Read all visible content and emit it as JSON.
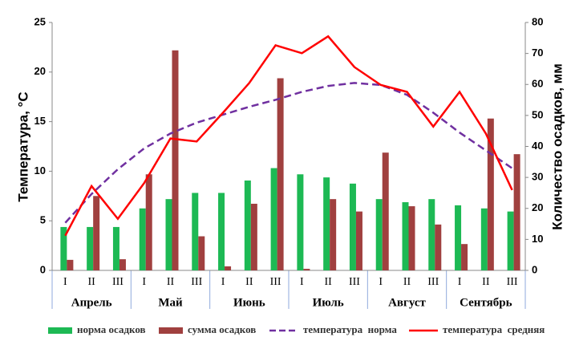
{
  "chart_data": {
    "type": "combo",
    "y_label": "Температура, °С",
    "y2_label": "Количество осадков, мм",
    "groups": [
      {
        "name": "Апрель",
        "categories": [
          "I",
          "II",
          "III"
        ]
      },
      {
        "name": "Май",
        "categories": [
          "I",
          "II",
          "III"
        ]
      },
      {
        "name": "Июнь",
        "categories": [
          "I",
          "II",
          "III"
        ]
      },
      {
        "name": "Июль",
        "categories": [
          "I",
          "II",
          "III"
        ]
      },
      {
        "name": "Август",
        "categories": [
          "I",
          "II",
          "III"
        ]
      },
      {
        "name": "Сентябрь",
        "categories": [
          "I",
          "II",
          "III"
        ]
      }
    ],
    "ylim": [
      0,
      25
    ],
    "yticks": [
      0,
      5,
      10,
      15,
      20,
      25
    ],
    "y2lim": [
      0,
      80
    ],
    "y2ticks": [
      0,
      10,
      20,
      30,
      40,
      50,
      60,
      70,
      80
    ],
    "series": [
      {
        "name": "норма осадков",
        "type": "bar",
        "axis": "y2",
        "color": "#1db954",
        "values": [
          14,
          14,
          14,
          20,
          23,
          25,
          25,
          29,
          33,
          31,
          30,
          28,
          23,
          22,
          23,
          21,
          20,
          19
        ]
      },
      {
        "name": "сумма осадков",
        "type": "bar",
        "axis": "y2",
        "color": "#a0403f",
        "values": [
          3.4,
          24,
          3.6,
          31,
          71,
          11,
          1.3,
          21.5,
          62,
          0.5,
          23,
          19,
          38,
          20.7,
          14.8,
          8.5,
          49,
          37.5
        ]
      },
      {
        "name": "температура  норма",
        "type": "line",
        "dashed": true,
        "color": "#7030a0",
        "values": [
          4.8,
          7.7,
          10.2,
          12.3,
          13.8,
          14.9,
          15.7,
          16.5,
          17.2,
          18.0,
          18.6,
          18.9,
          18.7,
          17.7,
          15.9,
          13.9,
          12.1,
          10.3
        ]
      },
      {
        "name": "температура  средняя",
        "type": "line",
        "dashed": false,
        "color": "#ff0000",
        "values": [
          3.5,
          8.5,
          5.2,
          8.8,
          13.3,
          13.0,
          15.9,
          18.9,
          22.7,
          21.9,
          23.6,
          20.5,
          18.7,
          18.0,
          14.5,
          18.0,
          13.8,
          8.1
        ]
      }
    ]
  }
}
